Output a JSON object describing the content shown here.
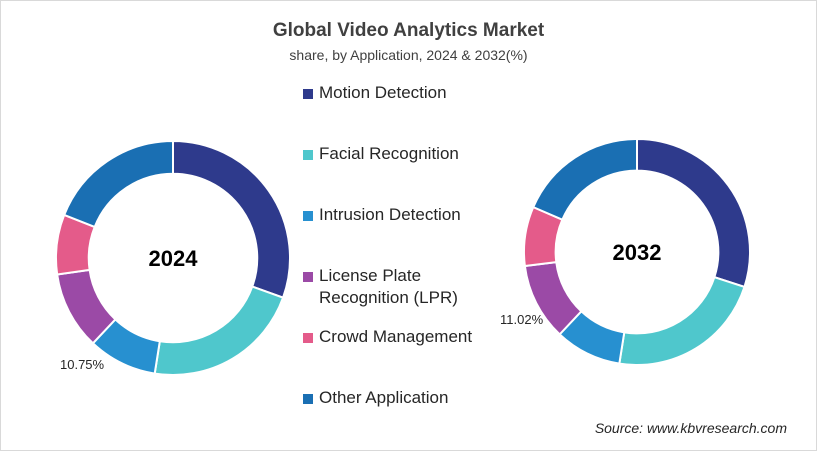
{
  "title": "Global Video Analytics Market",
  "subtitle": "share, by Application, 2024 & 2032(%)",
  "legend": [
    {
      "label": "Motion Detection",
      "color": "#2e3a8c"
    },
    {
      "label": "Facial Recognition",
      "color": "#4fc7cc"
    },
    {
      "label": "Intrusion Detection",
      "color": "#2790d0"
    },
    {
      "label": "License Plate\nRecognition (LPR)",
      "color": "#9b4aa6"
    },
    {
      "label": "Crowd Management",
      "color": "#e45b8a"
    },
    {
      "label": "Other Application",
      "color": "#1a6fb3"
    }
  ],
  "chart_data": [
    {
      "type": "pie",
      "center_label": "2024",
      "categories": [
        "Motion Detection",
        "Facial Recognition",
        "Intrusion Detection",
        "License Plate Recognition (LPR)",
        "Crowd Management",
        "Other Application"
      ],
      "values": [
        30.5,
        22.0,
        9.5,
        10.75,
        8.25,
        19.0
      ],
      "colors": [
        "#2e3a8c",
        "#4fc7cc",
        "#2790d0",
        "#9b4aa6",
        "#e45b8a",
        "#1a6fb3"
      ],
      "data_labels": [
        "",
        "",
        "",
        "10.75%",
        "",
        ""
      ]
    },
    {
      "type": "pie",
      "center_label": "2032",
      "categories": [
        "Motion Detection",
        "Facial Recognition",
        "Intrusion Detection",
        "License Plate Recognition (LPR)",
        "Crowd Management",
        "Other Application"
      ],
      "values": [
        30.0,
        22.5,
        9.5,
        11.02,
        8.48,
        18.5
      ],
      "colors": [
        "#2e3a8c",
        "#4fc7cc",
        "#2790d0",
        "#9b4aa6",
        "#e45b8a",
        "#1a6fb3"
      ],
      "data_labels": [
        "",
        "",
        "",
        "11.02%",
        "",
        ""
      ]
    }
  ],
  "source": "Source: www.kbvresearch.com"
}
